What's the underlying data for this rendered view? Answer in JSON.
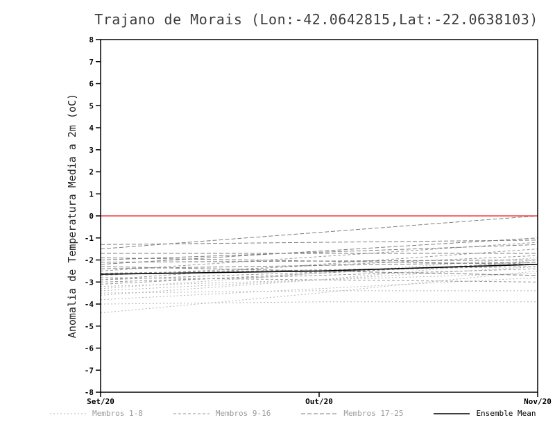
{
  "chart_data": {
    "type": "line",
    "title": "Trajano de Morais (Lon:-42.0642815,Lat:-22.0638103)",
    "ylabel": "Anomalia de Temperatura Media a 2m (oC)",
    "xlabel": "",
    "x_categories": [
      "Set/20",
      "Out/20",
      "Nov/20"
    ],
    "ylim": [
      -8,
      8
    ],
    "ytick_step": 1,
    "grid": false,
    "legend_position": "bottom",
    "zero_line": {
      "y": 0,
      "color": "#f03b3b"
    },
    "frame_color": "#000000",
    "series": [
      {
        "name": "Membros 1-8",
        "style": "dashed",
        "color": "#b4b4b4",
        "members": [
          [
            -4.4,
            -3.5,
            -2.5
          ],
          [
            -4.0,
            -3.9,
            -3.9
          ],
          [
            -3.8,
            -3.3,
            -2.8
          ],
          [
            -3.6,
            -2.9,
            -2.0
          ],
          [
            -3.5,
            -3.4,
            -3.4
          ],
          [
            -3.4,
            -2.9,
            -2.3
          ],
          [
            -3.3,
            -2.6,
            -1.9
          ],
          [
            -3.2,
            -2.9,
            -2.6
          ]
        ]
      },
      {
        "name": "Membros 9-16",
        "style": "dashed",
        "color": "#9a9a9a",
        "members": [
          [
            -3.1,
            -2.6,
            -2.1
          ],
          [
            -3.0,
            -2.7,
            -2.4
          ],
          [
            -2.9,
            -2.2,
            -1.5
          ],
          [
            -2.9,
            -2.55,
            -2.2
          ],
          [
            -2.8,
            -2.9,
            -3.0
          ],
          [
            -2.7,
            -2.25,
            -1.8
          ],
          [
            -2.6,
            -2.45,
            -2.3
          ],
          [
            -2.5,
            -1.85,
            -1.2
          ]
        ]
      },
      {
        "name": "Membros 17-25",
        "style": "dashed",
        "color": "#7e7e7e",
        "members": [
          [
            -2.4,
            -2.25,
            -2.1
          ],
          [
            -2.3,
            -2.5,
            -2.7
          ],
          [
            -2.2,
            -1.6,
            -1.0
          ],
          [
            -2.1,
            -2.05,
            -2.0
          ],
          [
            -2.0,
            -1.65,
            -1.3
          ],
          [
            -1.9,
            -2.05,
            -2.2
          ],
          [
            -1.7,
            -1.7,
            -1.7
          ],
          [
            -1.5,
            -0.75,
            0.0
          ],
          [
            -1.3,
            -1.2,
            -1.1
          ]
        ]
      },
      {
        "name": "Ensemble Mean",
        "style": "solid",
        "color": "#000000",
        "members": [
          [
            -2.65,
            -2.5,
            -2.2
          ]
        ]
      }
    ]
  }
}
